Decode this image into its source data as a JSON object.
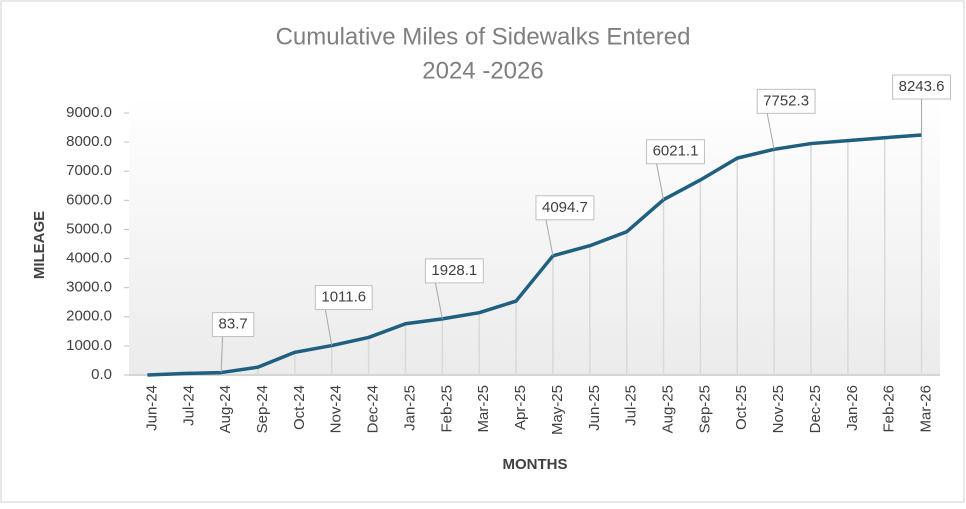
{
  "chart_data": {
    "type": "line",
    "title": "Cumulative Miles of Sidewalks Entered",
    "subtitle": "2024 -2026",
    "x_label": "MONTHS",
    "y_label": "MILEAGE",
    "categories": [
      "Jun-24",
      "Jul-24",
      "Aug-24",
      "Sep-24",
      "Oct-24",
      "Nov-24",
      "Dec-24",
      "Jan-25",
      "Feb-25",
      "Mar-25",
      "Apr-25",
      "May-25",
      "Jun-25",
      "Jul-25",
      "Aug-25",
      "Sep-25",
      "Oct-25",
      "Nov-25",
      "Dec-25",
      "Jan-26",
      "Feb-26",
      "Mar-26"
    ],
    "series": [
      {
        "name": "Mileage",
        "color": "#1f5f7f",
        "values": [
          0,
          50,
          83.7,
          270,
          780,
          1011.6,
          1290,
          1760,
          1928.1,
          2140,
          2540,
          4094.7,
          4440,
          4920,
          6021.1,
          6700,
          7450,
          7752.3,
          7950,
          8050,
          8150,
          8243.6
        ],
        "value_labels": [
          null,
          null,
          "83.7",
          null,
          null,
          "1011.6",
          null,
          null,
          "1928.1",
          null,
          null,
          "4094.7",
          null,
          null,
          "6021.1",
          null,
          null,
          "7752.3",
          null,
          null,
          null,
          "8243.6"
        ]
      }
    ],
    "ylim": [
      0,
      9000
    ],
    "yticks": [
      {
        "value": 0,
        "label": "0.0"
      },
      {
        "value": 1000,
        "label": "1000.0"
      },
      {
        "value": 2000,
        "label": "2000.0"
      },
      {
        "value": 3000,
        "label": "3000.0"
      },
      {
        "value": 4000,
        "label": "4000.0"
      },
      {
        "value": 5000,
        "label": "5000.0"
      },
      {
        "value": 6000,
        "label": "6000.0"
      },
      {
        "value": 7000,
        "label": "7000.0"
      },
      {
        "value": 8000,
        "label": "8000.0"
      },
      {
        "value": 9000,
        "label": "9000.0"
      }
    ],
    "drop_lines": true
  }
}
